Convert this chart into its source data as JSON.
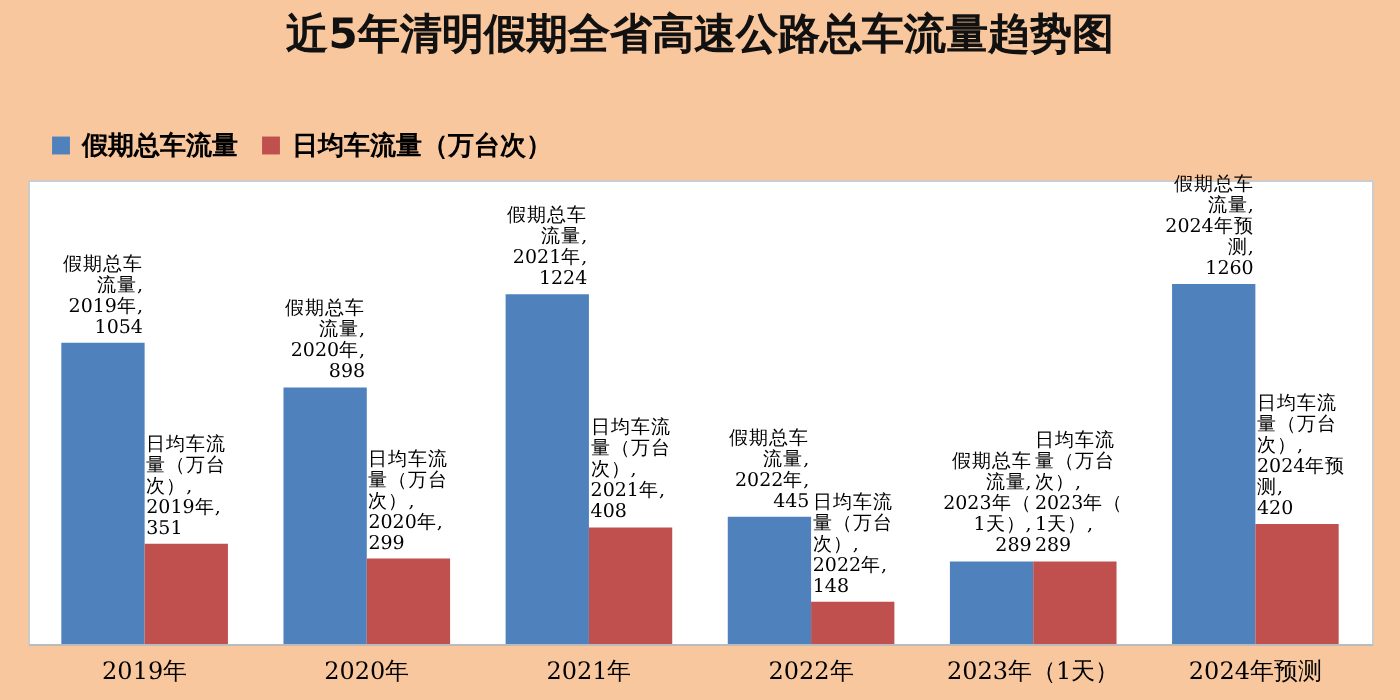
{
  "chart_data": {
    "type": "bar",
    "title": "近5年清明假期全省高速公路总车流量趋势图",
    "categories": [
      "2019年",
      "2020年",
      "2021年",
      "2022年",
      "2023年（1天）",
      "2024年预测"
    ],
    "series": [
      {
        "name": "假期总车流量",
        "color": "#4f81bd",
        "values": [
          1054,
          898,
          1224,
          445,
          289,
          1260
        ],
        "value_labels": [
          "假期总车流量, 2019年, 1054",
          "假期总车流量, 2020年, 898",
          "假期总车流量, 2021年, 1224",
          "假期总车流量, 2022年, 445",
          "假期总车流量, 2023年（1天）, 289",
          "假期总车流量, 2024年预测, 1260"
        ]
      },
      {
        "name": "日均车流量（万台次）",
        "color": "#c0504d",
        "values": [
          351,
          299,
          408,
          148,
          289,
          420
        ],
        "value_labels": [
          "日均车流量（万台次）, 2019年, 351",
          "日均车流量（万台次）, 2020年, 299",
          "日均车流量（万台次）, 2021年, 408",
          "日均车流量（万台次）, 2022年, 148",
          "日均车流量（万台次）, 2023年（1天）, 289",
          "日均车流量（万台次）, 2024年预测, 420"
        ]
      }
    ],
    "legend": "top left",
    "grid": false
  }
}
